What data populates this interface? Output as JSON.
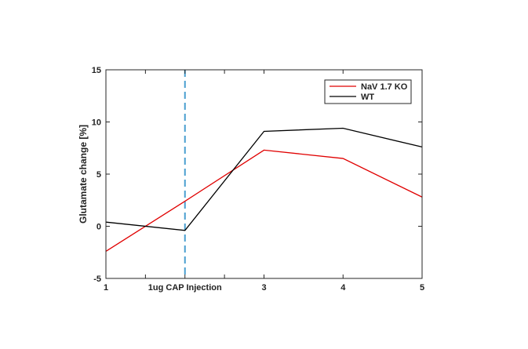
{
  "chart_data": {
    "type": "line",
    "title": "",
    "xlabel": "",
    "ylabel": "Glutamate  change [%]",
    "x": [
      1,
      2,
      3,
      4,
      5
    ],
    "x_tick_labels": [
      "1",
      "1ug CAP Injection",
      "3",
      "4",
      "5"
    ],
    "xlim": [
      1,
      5
    ],
    "x_minor_ticks": [
      1.5,
      2.5
    ],
    "ylim": [
      -5,
      15
    ],
    "y_ticks": [
      -5,
      0,
      5,
      10,
      15
    ],
    "grid": false,
    "legend_position": "top-right",
    "annotations": [
      {
        "type": "vertical-dashed-line",
        "x": 2,
        "color": "#4a9fd0"
      }
    ],
    "series": [
      {
        "name": "NaV 1.7 KO",
        "color": "#e00000",
        "values": [
          -2.4,
          2.4,
          7.3,
          6.5,
          2.8
        ]
      },
      {
        "name": "WT",
        "color": "#000000",
        "values": [
          0.4,
          -0.4,
          9.1,
          9.4,
          7.6
        ]
      }
    ]
  }
}
